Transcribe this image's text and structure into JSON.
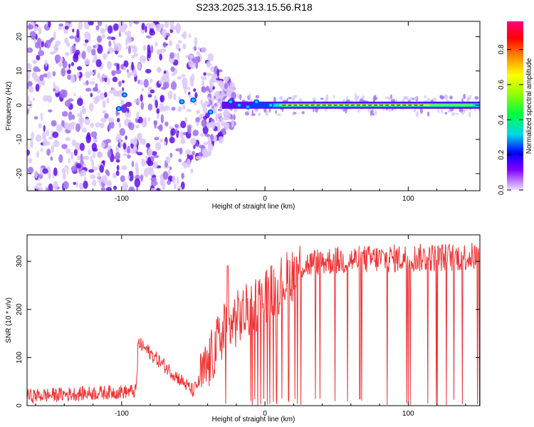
{
  "title": "S233.2025.313.15.56.R18",
  "colors": {
    "snr_line": "#f03232",
    "scatter_light": "#dcc8f8",
    "scatter_mid": "#a070f0",
    "scatter_dark": "#6010e8",
    "colorbar_stops": [
      "#f0e0ff",
      "#8000ff",
      "#0000ff",
      "#00e0e0",
      "#00ff00",
      "#ffff00",
      "#ff8000",
      "#ff0000",
      "#ff0080"
    ]
  },
  "chart_data": [
    {
      "type": "heatmap",
      "title": "S233.2025.313.15.56.R18",
      "xlabel": "Height of straight line (km)",
      "ylabel": "Frequency (Hz)",
      "xlim": [
        -166,
        150
      ],
      "ylim": [
        -25,
        24.5
      ],
      "xticks": [
        -100,
        0,
        100
      ],
      "yticks": [
        -20,
        -10,
        0,
        10,
        20
      ],
      "colorbar": {
        "label": "Normalized spectral amplitude",
        "range": [
          0,
          0.96
        ],
        "ticks": [
          0.0,
          0.2,
          0.4,
          0.6,
          0.8
        ]
      },
      "description_values": {
        "spread_region_km": [
          -166,
          -25
        ],
        "carrier_frequency_hz": 0,
        "peak_carrier_region_km": [
          10,
          110
        ]
      }
    },
    {
      "type": "line",
      "xlabel": "Height of straight line (km)",
      "ylabel": "SNR (10 * v/v)",
      "xlim": [
        -166,
        150
      ],
      "ylim": [
        0,
        355
      ],
      "xticks": [
        -100,
        0,
        100
      ],
      "yticks": [
        0,
        100,
        200,
        300
      ],
      "series": [
        {
          "name": "SNR",
          "anchor_x": [
            -166,
            -90,
            -88,
            -50,
            -40,
            -30,
            -20,
            -10,
            0,
            10,
            25,
            40,
            80,
            150
          ],
          "anchor_y": [
            20,
            30,
            130,
            30,
            80,
            150,
            180,
            200,
            230,
            250,
            290,
            300,
            305,
            310
          ]
        }
      ]
    }
  ]
}
